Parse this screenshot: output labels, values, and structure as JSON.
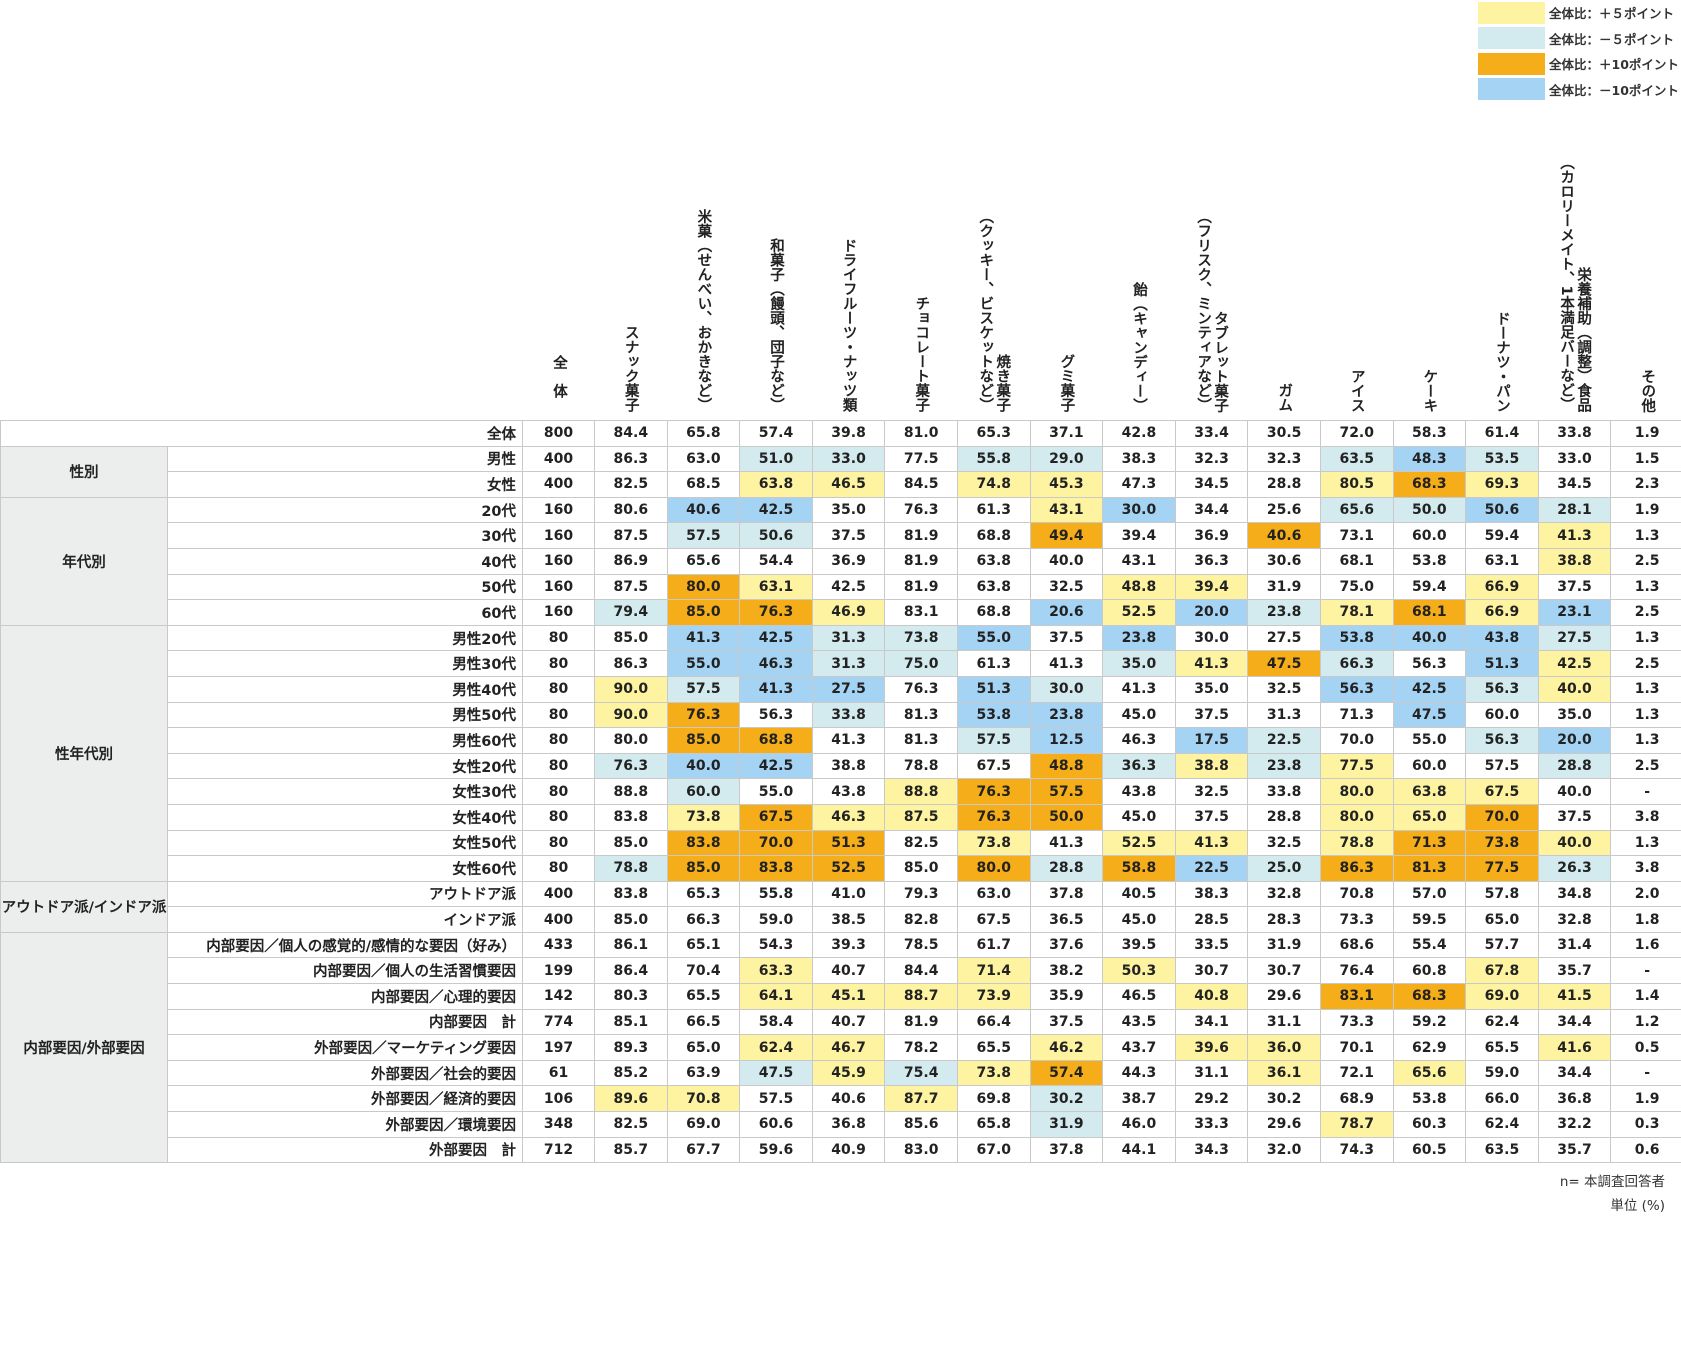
{
  "legend": [
    {
      "label": "全体比：＋５ポイント",
      "color": "#fdf3a0"
    },
    {
      "label": "全体比：－５ポイント",
      "color": "#d3ebee"
    },
    {
      "label": "全体比：＋10ポイント",
      "color": "#f5ad19"
    },
    {
      "label": "全体比：－10ポイント",
      "color": "#a5d3f3"
    }
  ],
  "colors": {
    "plus5": "#fdf3a0",
    "minus5": "#d3ebee",
    "plus10": "#f5ad19",
    "minus10": "#a5d3f3"
  },
  "notes": {
    "n": "n= 本調査回答者",
    "unit": "単位 (%)"
  },
  "chart_data": {
    "type": "table",
    "total_header": "全体",
    "columns": [
      [
        "スナック菓子"
      ],
      [
        "米菓（せんべい、おかきなど）"
      ],
      [
        "和菓子（饅頭、団子など）"
      ],
      [
        "ドライフルーツ・ナッツ類"
      ],
      [
        "チョコレート菓子"
      ],
      [
        "焼き菓子",
        "（クッキー、ビスケットなど）"
      ],
      [
        "グミ菓子"
      ],
      [
        "飴（キャンディー）"
      ],
      [
        "タブレット菓子",
        "（フリスク、ミンティアなど）"
      ],
      [
        "ガム"
      ],
      [
        "アイス"
      ],
      [
        "ケーキ"
      ],
      [
        "ドーナツ・パン"
      ],
      [
        "栄養補助（調整）食品",
        "（カロリーメイト、1本満足バーなど）"
      ],
      [
        "その他"
      ]
    ],
    "groups": [
      {
        "name": "",
        "rows": [
          {
            "label": "全体",
            "n": "800",
            "values": [
              "84.4",
              "65.8",
              "57.4",
              "39.8",
              "81.0",
              "65.3",
              "37.1",
              "42.8",
              "33.4",
              "30.5",
              "72.0",
              "58.3",
              "61.4",
              "33.8",
              "1.9"
            ],
            "hl": "...............",
            "full": true
          }
        ]
      },
      {
        "name": "性別",
        "rows": [
          {
            "label": "男性",
            "n": "400",
            "values": [
              "86.3",
              "63.0",
              "51.0",
              "33.0",
              "77.5",
              "55.8",
              "29.0",
              "38.3",
              "32.3",
              "32.3",
              "63.5",
              "48.3",
              "53.5",
              "33.0",
              "1.5"
            ],
            "hl": "..mm.mm...mMm.."
          },
          {
            "label": "女性",
            "n": "400",
            "values": [
              "82.5",
              "68.5",
              "63.8",
              "46.5",
              "84.5",
              "74.8",
              "45.3",
              "47.3",
              "34.5",
              "28.8",
              "80.5",
              "68.3",
              "69.3",
              "34.5",
              "2.3"
            ],
            "hl": "..pp.pp...pPp.."
          }
        ]
      },
      {
        "name": "年代別",
        "rows": [
          {
            "label": "20代",
            "n": "160",
            "values": [
              "80.6",
              "40.6",
              "42.5",
              "35.0",
              "76.3",
              "61.3",
              "43.1",
              "30.0",
              "34.4",
              "25.6",
              "65.6",
              "50.0",
              "50.6",
              "28.1",
              "1.9"
            ],
            "hl": ".MM...pM..mmMm."
          },
          {
            "label": "30代",
            "n": "160",
            "values": [
              "87.5",
              "57.5",
              "50.6",
              "37.5",
              "81.9",
              "68.8",
              "49.4",
              "39.4",
              "36.9",
              "40.6",
              "73.1",
              "60.0",
              "59.4",
              "41.3",
              "1.3"
            ],
            "hl": ".mm...P..P...p."
          },
          {
            "label": "40代",
            "n": "160",
            "values": [
              "86.9",
              "65.6",
              "54.4",
              "36.9",
              "81.9",
              "63.8",
              "40.0",
              "43.1",
              "36.3",
              "30.6",
              "68.1",
              "53.8",
              "63.1",
              "38.8",
              "2.5"
            ],
            "hl": ".............p."
          },
          {
            "label": "50代",
            "n": "160",
            "values": [
              "87.5",
              "80.0",
              "63.1",
              "42.5",
              "81.9",
              "63.8",
              "32.5",
              "48.8",
              "39.4",
              "31.9",
              "75.0",
              "59.4",
              "66.9",
              "37.5",
              "1.3"
            ],
            "hl": ".Pp....pp...p.."
          },
          {
            "label": "60代",
            "n": "160",
            "values": [
              "79.4",
              "85.0",
              "76.3",
              "46.9",
              "83.1",
              "68.8",
              "20.6",
              "52.5",
              "20.0",
              "23.8",
              "78.1",
              "68.1",
              "66.9",
              "23.1",
              "2.5"
            ],
            "hl": "mPPp..MpMmpPpM."
          }
        ]
      },
      {
        "name": "性年代別",
        "rows": [
          {
            "label": "男性20代",
            "n": "80",
            "values": [
              "85.0",
              "41.3",
              "42.5",
              "31.3",
              "73.8",
              "55.0",
              "37.5",
              "23.8",
              "30.0",
              "27.5",
              "53.8",
              "40.0",
              "43.8",
              "27.5",
              "1.3"
            ],
            "hl": ".MMmmM.M..MMMm."
          },
          {
            "label": "男性30代",
            "n": "80",
            "values": [
              "86.3",
              "55.0",
              "46.3",
              "31.3",
              "75.0",
              "61.3",
              "41.3",
              "35.0",
              "41.3",
              "47.5",
              "66.3",
              "56.3",
              "51.3",
              "42.5",
              "2.5"
            ],
            "hl": ".MMmm..mpPm.Mp."
          },
          {
            "label": "男性40代",
            "n": "80",
            "values": [
              "90.0",
              "57.5",
              "41.3",
              "27.5",
              "76.3",
              "51.3",
              "30.0",
              "41.3",
              "35.0",
              "32.5",
              "56.3",
              "42.5",
              "56.3",
              "40.0",
              "1.3"
            ],
            "hl": "pmMM.Mm...MMmp."
          },
          {
            "label": "男性50代",
            "n": "80",
            "values": [
              "90.0",
              "76.3",
              "56.3",
              "33.8",
              "81.3",
              "53.8",
              "23.8",
              "45.0",
              "37.5",
              "31.3",
              "71.3",
              "47.5",
              "60.0",
              "35.0",
              "1.3"
            ],
            "hl": "pP.m.MM....M..."
          },
          {
            "label": "男性60代",
            "n": "80",
            "values": [
              "80.0",
              "85.0",
              "68.8",
              "41.3",
              "81.3",
              "57.5",
              "12.5",
              "46.3",
              "17.5",
              "22.5",
              "70.0",
              "55.0",
              "56.3",
              "20.0",
              "1.3"
            ],
            "hl": ".PP..mM.Mm..mM."
          },
          {
            "label": "女性20代",
            "n": "80",
            "values": [
              "76.3",
              "40.0",
              "42.5",
              "38.8",
              "78.8",
              "67.5",
              "48.8",
              "36.3",
              "38.8",
              "23.8",
              "77.5",
              "60.0",
              "57.5",
              "28.8",
              "2.5"
            ],
            "hl": "mMM...Pmpmp..m."
          },
          {
            "label": "女性30代",
            "n": "80",
            "values": [
              "88.8",
              "60.0",
              "55.0",
              "43.8",
              "88.8",
              "76.3",
              "57.5",
              "43.8",
              "32.5",
              "33.8",
              "80.0",
              "63.8",
              "67.5",
              "40.0",
              "-"
            ],
            "hl": ".m..pPP...ppp.."
          },
          {
            "label": "女性40代",
            "n": "80",
            "values": [
              "83.8",
              "73.8",
              "67.5",
              "46.3",
              "87.5",
              "76.3",
              "50.0",
              "45.0",
              "37.5",
              "28.8",
              "80.0",
              "65.0",
              "70.0",
              "37.5",
              "3.8"
            ],
            "hl": ".pPppPP...ppP.."
          },
          {
            "label": "女性50代",
            "n": "80",
            "values": [
              "85.0",
              "83.8",
              "70.0",
              "51.3",
              "82.5",
              "73.8",
              "41.3",
              "52.5",
              "41.3",
              "32.5",
              "78.8",
              "71.3",
              "73.8",
              "40.0",
              "1.3"
            ],
            "hl": ".PPP.p.pp.pPPp."
          },
          {
            "label": "女性60代",
            "n": "80",
            "values": [
              "78.8",
              "85.0",
              "83.8",
              "52.5",
              "85.0",
              "80.0",
              "28.8",
              "58.8",
              "22.5",
              "25.0",
              "86.3",
              "81.3",
              "77.5",
              "26.3",
              "3.8"
            ],
            "hl": "mPPP.PmPMmPPPm."
          }
        ]
      },
      {
        "name": "アウトドア派/インドア派",
        "rows": [
          {
            "label": "アウトドア派",
            "n": "400",
            "values": [
              "83.8",
              "65.3",
              "55.8",
              "41.0",
              "79.3",
              "63.0",
              "37.8",
              "40.5",
              "38.3",
              "32.8",
              "70.8",
              "57.0",
              "57.8",
              "34.8",
              "2.0"
            ],
            "hl": "..............."
          },
          {
            "label": "インドア派",
            "n": "400",
            "values": [
              "85.0",
              "66.3",
              "59.0",
              "38.5",
              "82.8",
              "67.5",
              "36.5",
              "45.0",
              "28.5",
              "28.3",
              "73.3",
              "59.5",
              "65.0",
              "32.8",
              "1.8"
            ],
            "hl": "..............."
          }
        ]
      },
      {
        "name": "内部要因/外部要因",
        "rows": [
          {
            "label": "内部要因／個人の感覚的/感情的な要因（好み）",
            "n": "433",
            "values": [
              "86.1",
              "65.1",
              "54.3",
              "39.3",
              "78.5",
              "61.7",
              "37.6",
              "39.5",
              "33.5",
              "31.9",
              "68.6",
              "55.4",
              "57.7",
              "31.4",
              "1.6"
            ],
            "hl": "..............."
          },
          {
            "label": "内部要因／個人の生活習慣要因",
            "n": "199",
            "values": [
              "86.4",
              "70.4",
              "63.3",
              "40.7",
              "84.4",
              "71.4",
              "38.2",
              "50.3",
              "30.7",
              "30.7",
              "76.4",
              "60.8",
              "67.8",
              "35.7",
              "-"
            ],
            "hl": "..p..p.p....p.."
          },
          {
            "label": "内部要因／心理的要因",
            "n": "142",
            "values": [
              "80.3",
              "65.5",
              "64.1",
              "45.1",
              "88.7",
              "73.9",
              "35.9",
              "46.5",
              "40.8",
              "29.6",
              "83.1",
              "68.3",
              "69.0",
              "41.5",
              "1.4"
            ],
            "hl": "..pppp..p.PPpp."
          },
          {
            "label": "内部要因　計",
            "n": "774",
            "values": [
              "85.1",
              "66.5",
              "58.4",
              "40.7",
              "81.9",
              "66.4",
              "37.5",
              "43.5",
              "34.1",
              "31.1",
              "73.3",
              "59.2",
              "62.4",
              "34.4",
              "1.2"
            ],
            "hl": "..............."
          },
          {
            "label": "外部要因／マーケティング要因",
            "n": "197",
            "values": [
              "89.3",
              "65.0",
              "62.4",
              "46.7",
              "78.2",
              "65.5",
              "46.2",
              "43.7",
              "39.6",
              "36.0",
              "70.1",
              "62.9",
              "65.5",
              "41.6",
              "0.5"
            ],
            "hl": "..pp..p.pp...p."
          },
          {
            "label": "外部要因／社会的要因",
            "n": "61",
            "values": [
              "85.2",
              "63.9",
              "47.5",
              "45.9",
              "75.4",
              "73.8",
              "57.4",
              "44.3",
              "31.1",
              "36.1",
              "72.1",
              "65.6",
              "59.0",
              "34.4",
              "-"
            ],
            "hl": "..mpmpP..p.p..."
          },
          {
            "label": "外部要因／経済的要因",
            "n": "106",
            "values": [
              "89.6",
              "70.8",
              "57.5",
              "40.6",
              "87.7",
              "69.8",
              "30.2",
              "38.7",
              "29.2",
              "30.2",
              "68.9",
              "53.8",
              "66.0",
              "36.8",
              "1.9"
            ],
            "hl": "pp..p.m........"
          },
          {
            "label": "外部要因／環境要因",
            "n": "348",
            "values": [
              "82.5",
              "69.0",
              "60.6",
              "36.8",
              "85.6",
              "65.8",
              "31.9",
              "46.0",
              "33.3",
              "29.6",
              "78.7",
              "60.3",
              "62.4",
              "32.2",
              "0.3"
            ],
            "hl": "......m...p...."
          },
          {
            "label": "外部要因　計",
            "n": "712",
            "values": [
              "85.7",
              "67.7",
              "59.6",
              "40.9",
              "83.0",
              "67.0",
              "37.8",
              "44.1",
              "34.3",
              "32.0",
              "74.3",
              "60.5",
              "63.5",
              "35.7",
              "0.6"
            ],
            "hl": "..............."
          }
        ]
      }
    ]
  }
}
